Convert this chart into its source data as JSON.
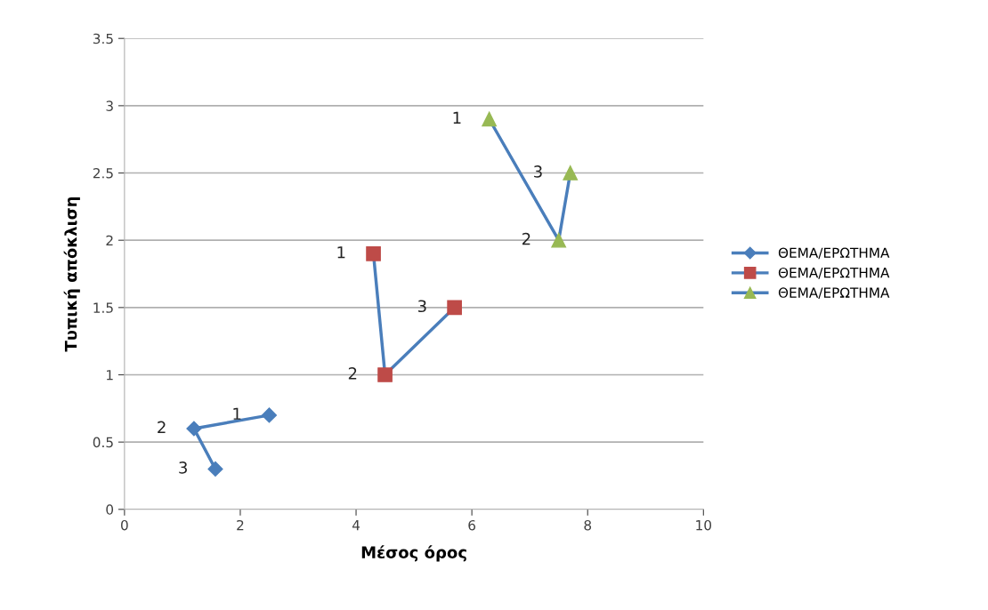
{
  "chart_data": {
    "type": "line",
    "xlabel": "Μέσος όρος",
    "ylabel": "Τυπική απόκλιση",
    "xlim": [
      0,
      10
    ],
    "xticks": [
      0,
      2,
      4,
      6,
      8,
      10
    ],
    "ylim": [
      0,
      3.5
    ],
    "yticks": [
      0,
      0.5,
      1,
      1.5,
      2,
      2.5,
      3,
      3.5
    ],
    "grid": "y",
    "legend": "right",
    "series": [
      {
        "name": "ΘΕΜΑ/ΕΡΩΤΗΜΑ",
        "color": "#4a7ebb",
        "colors": [
          "#4a7ebb",
          "#4a7ebb",
          "#4a7ebb"
        ],
        "marker": "diamond",
        "x": [
          2.5,
          1.2,
          1.57
        ],
        "values": [
          0.7,
          0.6,
          0.3
        ]
      },
      {
        "name": "ΘΕΜΑ/ΕΡΩΤΗΜΑ",
        "color": "#4a7ebb",
        "colors": [
          "#be4b48",
          "#be4b48",
          "#be4b48"
        ],
        "marker": "square",
        "x": [
          4.3,
          4.5,
          5.7
        ],
        "values": [
          1.9,
          1.0,
          1.5
        ]
      },
      {
        "name": "ΘΕΜΑ/ΕΡΩΤΗΜΑ",
        "color": "#4a7ebb",
        "colors": [
          "#98b954",
          "#98b954",
          "#98b954"
        ],
        "marker": "triangle",
        "x": [
          6.3,
          7.5,
          7.7
        ],
        "values": [
          2.9,
          2.0,
          2.5
        ]
      }
    ],
    "annotations": [
      {
        "text": "1",
        "x": 2.5,
        "y": 0.7
      },
      {
        "text": "2",
        "x": 1.2,
        "y": 0.6
      },
      {
        "text": "3",
        "x": 1.57,
        "y": 0.3
      },
      {
        "text": "1",
        "x": 4.3,
        "y": 1.9
      },
      {
        "text": "2",
        "x": 4.5,
        "y": 1.0
      },
      {
        "text": "3",
        "x": 5.7,
        "y": 1.5
      },
      {
        "text": "1",
        "x": 6.3,
        "y": 2.9
      },
      {
        "text": "2",
        "x": 7.5,
        "y": 2.0
      },
      {
        "text": "3",
        "x": 7.7,
        "y": 2.5
      }
    ]
  }
}
